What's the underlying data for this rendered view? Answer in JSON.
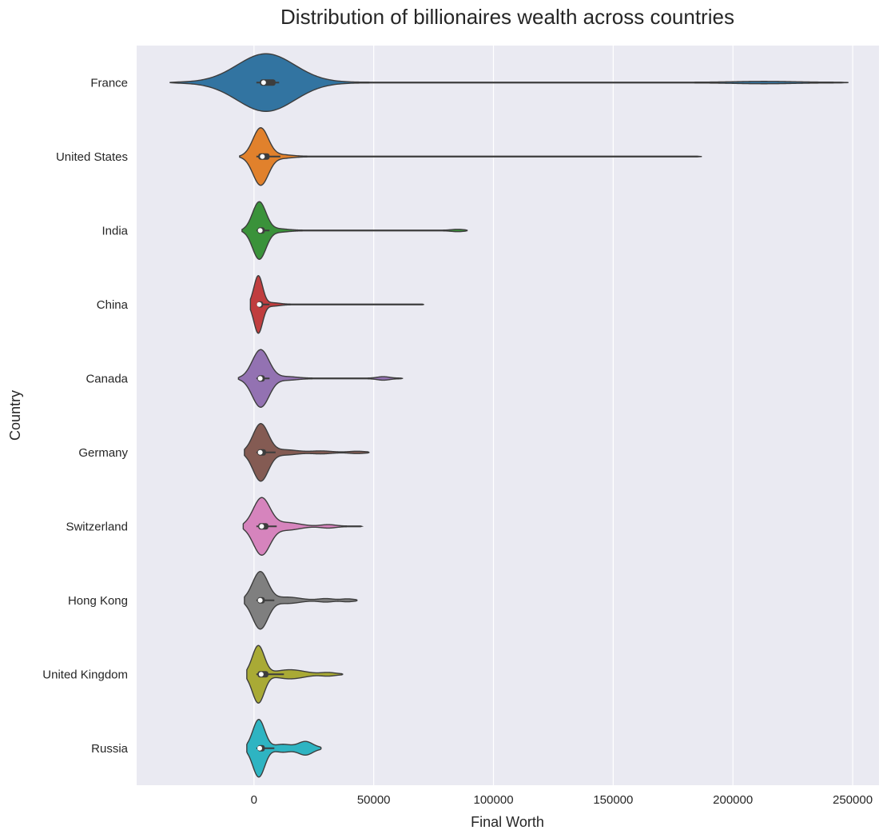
{
  "chart_data": {
    "type": "violin",
    "orientation": "horizontal",
    "title": "Distribution of billionaires wealth across countries",
    "xlabel": "Final Worth",
    "ylabel": "Country",
    "xlim": [
      -49000,
      261000
    ],
    "xticks": [
      0,
      50000,
      100000,
      150000,
      200000,
      250000
    ],
    "xtick_labels": [
      "0",
      "50000",
      "100000",
      "150000",
      "200000",
      "250000"
    ],
    "grid": true,
    "background_color": "#eaeaf2",
    "grid_color": "#ffffff",
    "categories": [
      "France",
      "United States",
      "India",
      "China",
      "Canada",
      "Germany",
      "Switzerland",
      "Hong Kong",
      "United Kingdom",
      "Russia"
    ],
    "series": [
      {
        "category": "France",
        "color": "#3274a1",
        "min": -35000,
        "max": 248000,
        "q1": 2500,
        "median": 4000,
        "q3": 9000,
        "whisker_low": 1000,
        "whisker_high": 10500,
        "modes": [
          [
            5000,
            12000,
            1.0
          ]
        ],
        "tail_bumps": [
          [
            213000,
            12000,
            0.03
          ]
        ],
        "tail_floor": 0.012,
        "max_half_height": 36
      },
      {
        "category": "United States",
        "color": "#e1812c",
        "min": -6000,
        "max": 187000,
        "q1": 1800,
        "median": 3500,
        "q3": 6500,
        "whisker_low": 1000,
        "whisker_high": 11000,
        "modes": [
          [
            2800,
            3200,
            1.0
          ]
        ],
        "tail_bumps": [
          [
            12000,
            4000,
            0.05
          ]
        ],
        "tail_floor": 0.012,
        "max_half_height": 36
      },
      {
        "category": "India",
        "color": "#3a923a",
        "min": -5000,
        "max": 89000,
        "q1": 1500,
        "median": 2600,
        "q3": 4500,
        "whisker_low": 1000,
        "whisker_high": 6500,
        "modes": [
          [
            2200,
            2800,
            1.0
          ]
        ],
        "tail_bumps": [
          [
            10000,
            4000,
            0.05
          ],
          [
            85000,
            2500,
            0.03
          ]
        ],
        "tail_floor": 0.012,
        "max_half_height": 36
      },
      {
        "category": "China",
        "color": "#c03d3e",
        "min": -1500,
        "max": 71000,
        "q1": 1500,
        "median": 2200,
        "q3": 3800,
        "whisker_low": 1000,
        "whisker_high": 6500,
        "modes": [
          [
            1800,
            1800,
            1.0
          ]
        ],
        "tail_bumps": [
          [
            7500,
            3000,
            0.05
          ]
        ],
        "tail_floor": 0.012,
        "max_half_height": 36
      },
      {
        "category": "Canada",
        "color": "#9372b2",
        "min": -6500,
        "max": 62000,
        "q1": 1500,
        "median": 2600,
        "q3": 4500,
        "whisker_low": 1000,
        "whisker_high": 6500,
        "modes": [
          [
            2800,
            3500,
            1.0
          ]
        ],
        "tail_bumps": [
          [
            14000,
            4000,
            0.05
          ],
          [
            54000,
            2500,
            0.05
          ]
        ],
        "tail_floor": 0.012,
        "max_half_height": 36
      },
      {
        "category": "Germany",
        "color": "#845b53",
        "min": -4000,
        "max": 48000,
        "q1": 1500,
        "median": 2600,
        "q3": 5000,
        "whisker_low": 1000,
        "whisker_high": 9000,
        "modes": [
          [
            2800,
            3200,
            1.0
          ]
        ],
        "tail_bumps": [
          [
            13000,
            5000,
            0.08
          ],
          [
            28000,
            4000,
            0.04
          ],
          [
            43000,
            3000,
            0.03
          ]
        ],
        "tail_floor": 0.012,
        "max_half_height": 36
      },
      {
        "category": "Switzerland",
        "color": "#d684bd",
        "min": -4500,
        "max": 45000,
        "q1": 1800,
        "median": 3200,
        "q3": 6000,
        "whisker_low": 1000,
        "whisker_high": 9500,
        "modes": [
          [
            3200,
            3500,
            1.0
          ]
        ],
        "tail_bumps": [
          [
            14000,
            5000,
            0.12
          ],
          [
            31000,
            3000,
            0.05
          ]
        ],
        "tail_floor": 0.012,
        "max_half_height": 36
      },
      {
        "category": "Hong Kong",
        "color": "#7f7f7f",
        "min": -4000,
        "max": 43000,
        "q1": 1500,
        "median": 2600,
        "q3": 4500,
        "whisker_low": 1000,
        "whisker_high": 8500,
        "modes": [
          [
            2600,
            3200,
            1.0
          ]
        ],
        "tail_bumps": [
          [
            14000,
            5000,
            0.1
          ],
          [
            30000,
            3000,
            0.05
          ],
          [
            39000,
            2500,
            0.04
          ]
        ],
        "tail_floor": 0.012,
        "max_half_height": 36
      },
      {
        "category": "United Kingdom",
        "color": "#a9aa35",
        "min": -3000,
        "max": 37000,
        "q1": 1500,
        "median": 3000,
        "q3": 6000,
        "whisker_low": 1000,
        "whisker_high": 12500,
        "modes": [
          [
            1800,
            2500,
            1.0
          ]
        ],
        "tail_bumps": [
          [
            15000,
            6000,
            0.15
          ],
          [
            31000,
            3000,
            0.05
          ]
        ],
        "tail_floor": 0.012,
        "max_half_height": 36
      },
      {
        "category": "Russia",
        "color": "#2eb4c2",
        "min": -3000,
        "max": 28000,
        "q1": 1500,
        "median": 2400,
        "q3": 4500,
        "whisker_low": 1000,
        "whisker_high": 8500,
        "modes": [
          [
            2000,
            2500,
            1.0
          ]
        ],
        "tail_bumps": [
          [
            12000,
            3500,
            0.12
          ],
          [
            21500,
            3000,
            0.22
          ]
        ],
        "tail_floor": 0.02,
        "max_half_height": 36
      }
    ]
  }
}
